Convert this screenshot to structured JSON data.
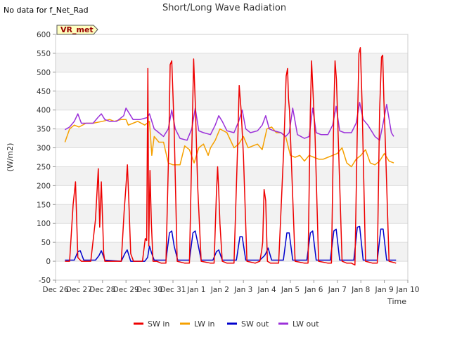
{
  "header": {
    "title": "Short/Long Wave Radiation",
    "no_data_note": "No data for f_Net_Rad"
  },
  "badge": {
    "label": "VR_met"
  },
  "chart_data": {
    "type": "line",
    "title": "Short/Long Wave Radiation",
    "xlabel": "Time",
    "ylabel": "(W/m2)",
    "ylim": [
      -50,
      600
    ],
    "xlim": [
      0,
      15
    ],
    "yticks": [
      -50,
      0,
      50,
      100,
      150,
      200,
      250,
      300,
      350,
      400,
      450,
      500,
      550,
      600
    ],
    "xticks": [
      {
        "x": 0,
        "label": "Dec 26"
      },
      {
        "x": 1,
        "label": "Dec 27"
      },
      {
        "x": 2,
        "label": "Dec 28"
      },
      {
        "x": 3,
        "label": "Dec 29"
      },
      {
        "x": 4,
        "label": "Dec 30"
      },
      {
        "x": 5,
        "label": "Dec 31"
      },
      {
        "x": 6,
        "label": "Jan 1"
      },
      {
        "x": 7,
        "label": "Jan 2"
      },
      {
        "x": 8,
        "label": "Jan 3"
      },
      {
        "x": 9,
        "label": "Jan 4"
      },
      {
        "x": 10,
        "label": "Jan 5"
      },
      {
        "x": 11,
        "label": "Jan 6"
      },
      {
        "x": 12,
        "label": "Jan 7"
      },
      {
        "x": 13,
        "label": "Jan 8"
      },
      {
        "x": 14,
        "label": "Jan 9"
      },
      {
        "x": 15,
        "label": "Jan 10"
      }
    ],
    "grid": true,
    "legend_position": "bottom",
    "series": [
      {
        "name": "SW in",
        "color": "#ee0000",
        "x": [
          0.4,
          0.6,
          0.75,
          0.85,
          0.95,
          1.1,
          1.5,
          1.7,
          1.82,
          1.88,
          1.95,
          2.05,
          2.1,
          2.3,
          2.8,
          2.92,
          3.0,
          3.06,
          3.12,
          3.2,
          3.32,
          3.5,
          3.7,
          3.82,
          3.88,
          3.93,
          3.97,
          4.02,
          4.08,
          4.15,
          4.3,
          4.5,
          4.7,
          4.82,
          4.88,
          4.95,
          5.05,
          5.18,
          5.5,
          5.7,
          5.82,
          5.88,
          5.95,
          6.05,
          6.2,
          6.6,
          6.75,
          6.85,
          6.9,
          6.95,
          7.0,
          7.1,
          7.3,
          7.6,
          7.75,
          7.82,
          7.9,
          8.0,
          8.15,
          8.5,
          8.7,
          8.78,
          8.82,
          8.88,
          8.95,
          9.02,
          9.15,
          9.5,
          9.72,
          9.82,
          9.88,
          9.92,
          9.96,
          10.05,
          10.2,
          10.6,
          10.75,
          10.85,
          10.9,
          10.96,
          11.05,
          11.2,
          11.6,
          11.75,
          11.85,
          11.9,
          11.96,
          12.05,
          12.2,
          12.4,
          12.6,
          12.75,
          12.85,
          12.92,
          12.98,
          13.05,
          13.2,
          13.5,
          13.7,
          13.8,
          13.88,
          13.93,
          13.98,
          14.05,
          14.2,
          14.5
        ],
        "y": [
          0,
          0,
          150,
          210,
          10,
          0,
          0,
          110,
          245,
          90,
          210,
          20,
          0,
          0,
          0,
          130,
          200,
          255,
          160,
          20,
          0,
          0,
          0,
          60,
          55,
          510,
          40,
          240,
          100,
          0,
          0,
          -5,
          -5,
          300,
          520,
          530,
          350,
          0,
          -5,
          -5,
          350,
          535,
          420,
          200,
          0,
          -5,
          -5,
          180,
          250,
          185,
          100,
          0,
          -5,
          -5,
          300,
          465,
          400,
          280,
          0,
          -5,
          0,
          30,
          50,
          190,
          160,
          0,
          -5,
          -5,
          300,
          490,
          510,
          430,
          400,
          250,
          0,
          -5,
          -5,
          400,
          530,
          450,
          330,
          0,
          -5,
          -5,
          400,
          530,
          480,
          300,
          0,
          -5,
          -5,
          -10,
          350,
          550,
          565,
          420,
          0,
          -5,
          -5,
          400,
          540,
          545,
          430,
          300,
          0,
          -5
        ]
      },
      {
        "name": "LW in",
        "color": "#f5a000",
        "x": [
          0.4,
          0.6,
          0.8,
          1.0,
          1.3,
          1.6,
          2.0,
          2.3,
          2.5,
          2.8,
          3.0,
          3.1,
          3.3,
          3.5,
          3.8,
          4.0,
          4.1,
          4.2,
          4.4,
          4.6,
          4.8,
          5.0,
          5.3,
          5.5,
          5.7,
          5.9,
          6.1,
          6.3,
          6.5,
          6.6,
          6.8,
          7.0,
          7.3,
          7.6,
          7.8,
          8.0,
          8.2,
          8.4,
          8.6,
          8.8,
          9.0,
          9.2,
          9.4,
          9.6,
          9.8,
          10.0,
          10.2,
          10.4,
          10.6,
          10.8,
          11.0,
          11.2,
          11.4,
          11.6,
          11.8,
          12.0,
          12.2,
          12.4,
          12.6,
          12.8,
          13.0,
          13.2,
          13.4,
          13.6,
          13.8,
          14.0,
          14.2,
          14.4
        ],
        "y": [
          315,
          350,
          360,
          355,
          365,
          365,
          370,
          375,
          370,
          375,
          375,
          360,
          365,
          370,
          360,
          370,
          280,
          330,
          315,
          315,
          260,
          255,
          255,
          305,
          295,
          260,
          300,
          310,
          280,
          300,
          320,
          350,
          340,
          300,
          310,
          330,
          300,
          305,
          310,
          295,
          350,
          355,
          340,
          340,
          330,
          280,
          275,
          280,
          265,
          280,
          275,
          270,
          270,
          275,
          280,
          285,
          300,
          260,
          250,
          270,
          280,
          295,
          260,
          255,
          265,
          285,
          265,
          260
        ]
      },
      {
        "name": "SW out",
        "color": "#0000cc",
        "x": [
          0.4,
          0.8,
          0.95,
          1.05,
          1.2,
          1.7,
          1.85,
          1.95,
          2.1,
          2.8,
          2.95,
          3.05,
          3.2,
          3.8,
          3.92,
          4.0,
          4.1,
          4.2,
          4.7,
          4.85,
          4.95,
          5.05,
          5.2,
          5.7,
          5.85,
          5.95,
          6.05,
          6.2,
          6.7,
          6.85,
          6.95,
          7.1,
          7.7,
          7.85,
          7.95,
          8.1,
          8.7,
          8.9,
          8.95,
          9.05,
          9.2,
          9.7,
          9.85,
          9.95,
          10.1,
          10.7,
          10.85,
          10.95,
          11.1,
          11.7,
          11.85,
          11.95,
          12.1,
          12.7,
          12.85,
          12.95,
          13.1,
          13.7,
          13.85,
          13.95,
          14.1,
          14.5
        ],
        "y": [
          3,
          3,
          25,
          28,
          3,
          3,
          15,
          28,
          3,
          0,
          20,
          30,
          0,
          0,
          10,
          40,
          20,
          3,
          3,
          75,
          80,
          40,
          3,
          3,
          75,
          80,
          50,
          3,
          3,
          25,
          30,
          3,
          3,
          65,
          65,
          3,
          3,
          15,
          20,
          35,
          3,
          3,
          75,
          75,
          3,
          3,
          75,
          80,
          3,
          3,
          80,
          85,
          3,
          3,
          90,
          92,
          3,
          3,
          85,
          85,
          3,
          3
        ]
      },
      {
        "name": "LW out",
        "color": "#9b30d9",
        "x": [
          0.4,
          0.6,
          0.8,
          0.95,
          1.1,
          1.3,
          1.6,
          1.8,
          1.95,
          2.1,
          2.3,
          2.6,
          2.9,
          3.0,
          3.1,
          3.3,
          3.6,
          3.9,
          4.0,
          4.2,
          4.4,
          4.6,
          4.8,
          4.95,
          5.1,
          5.3,
          5.6,
          5.8,
          5.95,
          6.1,
          6.3,
          6.6,
          6.8,
          6.95,
          7.1,
          7.3,
          7.6,
          7.8,
          7.95,
          8.1,
          8.3,
          8.6,
          8.8,
          8.95,
          9.1,
          9.3,
          9.6,
          9.8,
          9.95,
          10.1,
          10.3,
          10.6,
          10.8,
          10.95,
          11.1,
          11.3,
          11.6,
          11.8,
          11.95,
          12.1,
          12.3,
          12.6,
          12.8,
          12.95,
          13.1,
          13.3,
          13.6,
          13.8,
          13.95,
          14.1,
          14.3,
          14.4
        ],
        "y": [
          348,
          355,
          370,
          390,
          365,
          365,
          365,
          380,
          390,
          375,
          370,
          370,
          385,
          405,
          395,
          375,
          375,
          380,
          390,
          350,
          340,
          330,
          350,
          400,
          350,
          325,
          320,
          350,
          405,
          345,
          340,
          335,
          360,
          385,
          370,
          345,
          340,
          370,
          400,
          350,
          340,
          345,
          360,
          385,
          350,
          345,
          340,
          330,
          340,
          405,
          335,
          325,
          330,
          405,
          340,
          335,
          335,
          360,
          410,
          345,
          340,
          340,
          365,
          420,
          375,
          360,
          330,
          320,
          365,
          415,
          340,
          330
        ]
      }
    ]
  }
}
